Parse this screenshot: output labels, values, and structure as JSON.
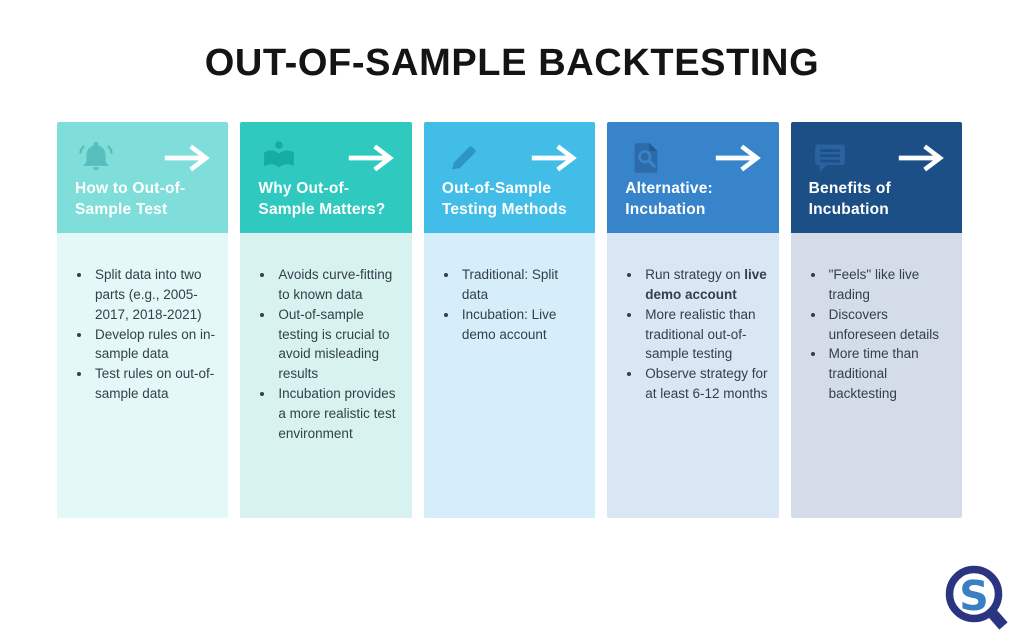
{
  "page": {
    "title": "OUT-OF-SAMPLE BACKTESTING",
    "background_color": "#FFFFFF",
    "title_color": "#141414",
    "body_text_color": "#32404B",
    "arrow_icon": "arrow-right-icon",
    "arrow_color": "#FFFFFF"
  },
  "cards": [
    {
      "id": "card-how-to-out-of-sample-test",
      "icon": "bell-icon",
      "title": "How to Out-of-Sample Test",
      "colors": {
        "header": "#7FDEDA",
        "icon": "#57BDBD",
        "body": "#E4F8F7"
      },
      "bullets": [
        [
          {
            "text": "Split data into two parts (e.g., 2005-2017, 2018-2021)",
            "bold": false
          }
        ],
        [
          {
            "text": "Develop rules on in-sample data",
            "bold": false
          }
        ],
        [
          {
            "text": "Test rules on out-of-sample data",
            "bold": false
          }
        ]
      ]
    },
    {
      "id": "card-why-out-of-sample-matters",
      "icon": "reading-book-icon",
      "title": "Why Out-of-Sample Matters?",
      "colors": {
        "header": "#2FC9C0",
        "icon": "#14ACA4",
        "body": "#D8F2EF"
      },
      "bullets": [
        [
          {
            "text": "Avoids curve-fitting to known data",
            "bold": false
          }
        ],
        [
          {
            "text": "Out-of-sample testing is crucial to avoid misleading results",
            "bold": false
          }
        ],
        [
          {
            "text": "Incubation provides a more realistic test environment",
            "bold": false
          }
        ]
      ]
    },
    {
      "id": "card-out-of-sample-testing-methods",
      "icon": "pencil-icon",
      "title": "Out-of-Sample Testing Methods",
      "colors": {
        "header": "#41BDE8",
        "icon": "#2D95C7",
        "body": "#D5EEF9"
      },
      "bullets": [
        [
          {
            "text": "Traditional: Split data",
            "bold": false
          }
        ],
        [
          {
            "text": "Incubation: Live demo account",
            "bold": false
          }
        ]
      ]
    },
    {
      "id": "card-alternative-incubation",
      "icon": "file-search-icon",
      "title": "Alternative: Incubation",
      "colors": {
        "header": "#3884CB",
        "icon": "#2C6BA8",
        "body": "#D9E7F5"
      },
      "bullets": [
        [
          {
            "text": "Run strategy on ",
            "bold": false
          },
          {
            "text": "live demo account",
            "bold": true
          }
        ],
        [
          {
            "text": "More realistic than traditional out-of-sample testing",
            "bold": false
          }
        ],
        [
          {
            "text": "Observe strategy for at least 6-12 months",
            "bold": false
          }
        ]
      ]
    },
    {
      "id": "card-benefits-of-incubation",
      "icon": "chat-bubble-icon",
      "title": "Benefits of Incubation",
      "colors": {
        "header": "#1B4F85",
        "icon": "#2A629F",
        "body": "#D4DDE7"
      },
      "bullets": [
        [
          {
            "text": "\"Feels\" like live trading",
            "bold": false
          }
        ],
        [
          {
            "text": "Discovers unforeseen details",
            "bold": false
          }
        ],
        [
          {
            "text": "More time than traditional backtesting",
            "bold": false
          }
        ]
      ]
    }
  ],
  "logo": {
    "id": "qs-magnifier-logo",
    "letter": "S",
    "colors": {
      "ring": "#2A3480",
      "letter": "#3A7FC1"
    }
  }
}
